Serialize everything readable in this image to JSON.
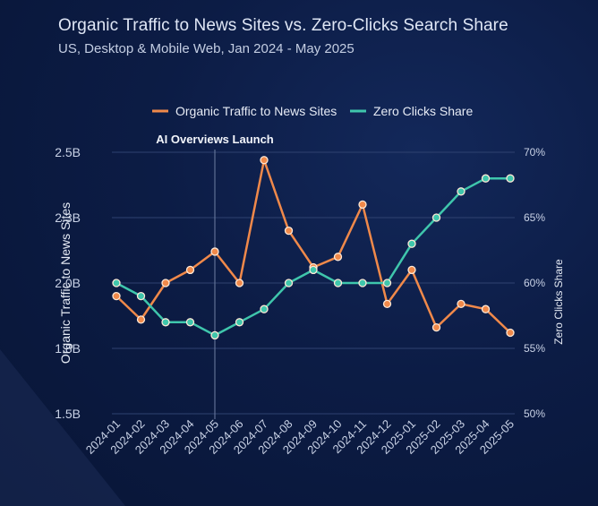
{
  "title": "Organic Traffic to News Sites vs. Zero-Clicks Search Share",
  "subtitle": "US, Desktop & Mobile Web, Jan 2024 - May 2025",
  "chart_data": {
    "type": "line",
    "title": "Organic Traffic to News Sites vs. Zero-Clicks Search Share",
    "subtitle": "US, Desktop & Mobile Web, Jan 2024 - May 2025",
    "categories": [
      "2024-01",
      "2024-02",
      "2024-03",
      "2024-04",
      "2024-05",
      "2024-06",
      "2024-07",
      "2024-08",
      "2024-09",
      "2024-10",
      "2024-11",
      "2024-12",
      "2025-01",
      "2025-02",
      "2025-03",
      "2025-04",
      "2025-05"
    ],
    "series": [
      {
        "name": "Organic Traffic to News Sites",
        "axis": "left",
        "color": "#f0894a",
        "values": [
          1.95,
          1.86,
          2.0,
          2.05,
          2.12,
          2.0,
          2.47,
          2.2,
          2.06,
          2.1,
          2.3,
          1.92,
          2.05,
          1.83,
          1.92,
          1.9,
          1.81
        ]
      },
      {
        "name": "Zero Clicks Share",
        "axis": "right",
        "color": "#3fc6ac",
        "values": [
          60,
          59,
          57,
          57,
          56,
          57,
          58,
          60,
          61,
          60,
          60,
          60,
          63,
          65,
          67,
          68,
          68
        ]
      }
    ],
    "y_left": {
      "label": "Organic Traffic to News Sites",
      "ticks": [
        "1.5B",
        "1.8B",
        "2.0B",
        "2.3B",
        "2.5B"
      ],
      "tick_values": [
        1.5,
        1.75,
        2.0,
        2.25,
        2.5
      ],
      "range": [
        1.5,
        2.5
      ]
    },
    "y_right": {
      "label": "Zero Clicks Share",
      "ticks": [
        "50%",
        "55%",
        "60%",
        "65%",
        "70%"
      ],
      "tick_values": [
        50,
        55,
        60,
        65,
        70
      ],
      "range": [
        50,
        70
      ]
    },
    "annotation": {
      "text": "AI Overviews Launch",
      "at": "2024-05"
    },
    "legend": "top-center",
    "grid": true
  }
}
